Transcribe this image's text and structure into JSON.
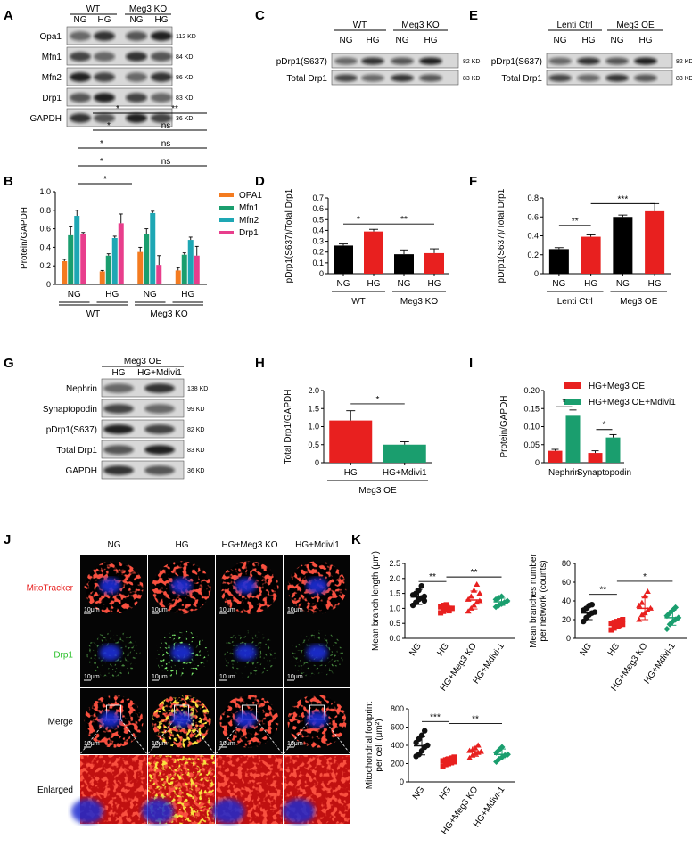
{
  "colors": {
    "ng": "#000000",
    "hg": "#e8201f",
    "green": "#1a9e6e",
    "opa1": "#f47b20",
    "mfn1": "#1a9e6e",
    "mfn2": "#1ea7b4",
    "drp1": "#e83e8c",
    "scatter_ng": "#111111",
    "scatter_hg": "#e8201f",
    "scatter_ko": "#e8201f",
    "scatter_mdivi": "#1a9e6e"
  },
  "panels": {
    "A": {
      "label": "A",
      "groups": [
        "WT",
        "Meg3 KO"
      ],
      "lanes": [
        "NG",
        "HG",
        "NG",
        "HG"
      ],
      "rows": [
        {
          "name": "Opa1",
          "kd": "112 KD"
        },
        {
          "name": "Mfn1",
          "kd": "84 KD"
        },
        {
          "name": "Mfn2",
          "kd": "86 KD"
        },
        {
          "name": "Drp1",
          "kd": "83 KD"
        },
        {
          "name": "GAPDH",
          "kd": "36 KD"
        }
      ]
    },
    "C": {
      "label": "C",
      "groups": [
        "WT",
        "Meg3 KO"
      ],
      "lanes": [
        "NG",
        "HG",
        "NG",
        "HG"
      ],
      "rows": [
        {
          "name": "pDrp1(S637)",
          "kd": "82 KD"
        },
        {
          "name": "Total Drp1",
          "kd": "83 KD"
        }
      ]
    },
    "E": {
      "label": "E",
      "groups": [
        "Lenti Ctrl",
        "Meg3 OE"
      ],
      "lanes": [
        "NG",
        "HG",
        "NG",
        "HG"
      ],
      "rows": [
        {
          "name": "pDrp1(S637)",
          "kd": "82 KD"
        },
        {
          "name": "Total Drp1",
          "kd": "83 KD"
        }
      ]
    },
    "G": {
      "label": "G",
      "group": "Meg3 OE",
      "lanes": [
        "HG",
        "HG+Mdivi1"
      ],
      "rows": [
        {
          "name": "Nephrin",
          "kd": "138 KD"
        },
        {
          "name": "Synaptopodin",
          "kd": "99 KD"
        },
        {
          "name": "pDrp1(S637)",
          "kd": "82 KD"
        },
        {
          "name": "Total Drp1",
          "kd": "83 KD"
        },
        {
          "name": "GAPDH",
          "kd": "36 KD"
        }
      ]
    },
    "B": {
      "label": "B"
    },
    "D": {
      "label": "D"
    },
    "F": {
      "label": "F"
    },
    "H": {
      "label": "H"
    },
    "I": {
      "label": "I"
    },
    "J": {
      "label": "J",
      "columns": [
        "NG",
        "HG",
        "HG+Meg3 KO",
        "HG+Mdivi1"
      ],
      "rows": [
        "MitoTracker",
        "Drp1",
        "Merge",
        "Enlarged"
      ],
      "scalebar": "10μm"
    },
    "K": {
      "label": "K"
    }
  },
  "chart_data": [
    {
      "id": "B",
      "type": "bar",
      "ylabel": "Protein/GAPDH",
      "ylim": [
        0,
        1.0
      ],
      "yticks": [
        "0",
        "0.2",
        "0.4",
        "0.6",
        "0.8",
        "1.0"
      ],
      "categories": [
        "NG",
        "HG",
        "NG",
        "HG"
      ],
      "groups": [
        "WT",
        "Meg3 KO"
      ],
      "series": [
        {
          "name": "OPA1",
          "values": [
            0.25,
            0.14,
            0.35,
            0.15
          ],
          "err": [
            0.02,
            0.01,
            0.05,
            0.03
          ]
        },
        {
          "name": "Mfn1",
          "values": [
            0.53,
            0.31,
            0.54,
            0.32
          ],
          "err": [
            0.09,
            0.02,
            0.06,
            0.02
          ]
        },
        {
          "name": "Mfn2",
          "values": [
            0.74,
            0.5,
            0.77,
            0.48
          ],
          "err": [
            0.06,
            0.02,
            0.02,
            0.03
          ]
        },
        {
          "name": "Drp1",
          "values": [
            0.54,
            0.66,
            0.21,
            0.31
          ],
          "err": [
            0.02,
            0.1,
            0.1,
            0.1
          ]
        }
      ],
      "sig": [
        {
          "label": "*"
        },
        {
          "label": "*"
        },
        {
          "label": "ns"
        },
        {
          "label": "*"
        },
        {
          "label": "ns"
        },
        {
          "label": "*"
        },
        {
          "label": "ns"
        },
        {
          "label": "*"
        },
        {
          "label": "**"
        }
      ]
    },
    {
      "id": "D",
      "type": "bar",
      "ylabel": "pDrp1(S637)/Total Drp1",
      "ylim": [
        0,
        0.7
      ],
      "yticks": [
        "0",
        "0.1",
        "0.2",
        "0.3",
        "0.4",
        "0.5",
        "0.6",
        "0.7"
      ],
      "categories": [
        "NG",
        "HG",
        "NG",
        "HG"
      ],
      "groups": [
        "WT",
        "Meg3 KO"
      ],
      "values": [
        0.26,
        0.39,
        0.18,
        0.19
      ],
      "err": [
        0.015,
        0.02,
        0.04,
        0.04
      ],
      "sig": [
        {
          "label": "*"
        },
        {
          "label": "**"
        }
      ]
    },
    {
      "id": "F",
      "type": "bar",
      "ylabel": "pDrp1(S637)/Total Drp1",
      "ylim": [
        0,
        0.8
      ],
      "yticks": [
        "0",
        "0.2",
        "0.4",
        "0.6",
        "0.8"
      ],
      "categories": [
        "NG",
        "HG",
        "NG",
        "HG"
      ],
      "groups": [
        "Lenti Ctrl",
        "Meg3 OE"
      ],
      "values": [
        0.26,
        0.39,
        0.6,
        0.66
      ],
      "err": [
        0.015,
        0.02,
        0.02,
        0.08
      ],
      "sig": [
        {
          "label": "**"
        },
        {
          "label": "***"
        }
      ]
    },
    {
      "id": "H",
      "type": "bar",
      "ylabel": "Total Drp1/GAPDH",
      "ylim": [
        0,
        2.0
      ],
      "yticks": [
        "0",
        "0.5",
        "1.0",
        "1.5",
        "2.0"
      ],
      "categories": [
        "HG",
        "HG+Mdivi1"
      ],
      "groups": [
        "Meg3 OE"
      ],
      "values": [
        1.17,
        0.5
      ],
      "err": [
        0.27,
        0.08
      ],
      "sig": [
        {
          "label": "*"
        }
      ]
    },
    {
      "id": "I",
      "type": "bar",
      "ylabel": "Protein/GAPDH",
      "ylim": [
        0,
        0.2
      ],
      "yticks": [
        "0",
        "0.05",
        "0.10",
        "0.15",
        "0.20"
      ],
      "categories": [
        "Nephrin",
        "Synaptopodin"
      ],
      "series": [
        {
          "name": "HG+Meg3 OE",
          "values": [
            0.033,
            0.027
          ],
          "err": [
            0.004,
            0.006
          ]
        },
        {
          "name": "HG+Meg3 OE+Mdivi1",
          "values": [
            0.13,
            0.07
          ],
          "err": [
            0.016,
            0.008
          ]
        }
      ],
      "sig": [
        {
          "label": "*"
        },
        {
          "label": "*"
        }
      ]
    },
    {
      "id": "K1",
      "type": "scatter",
      "ylabel": "Mean branch length (μm)",
      "ylim": [
        0,
        2.5
      ],
      "yticks": [
        "0.0",
        "0.5",
        "1.0",
        "1.5",
        "2.0",
        "2.5"
      ],
      "categories": [
        "NG",
        "HG",
        "HG+Meg3 KO",
        "HG+Mdivi-1"
      ],
      "means": [
        1.38,
        1.0,
        1.28,
        1.22
      ],
      "sd": [
        0.25,
        0.1,
        0.3,
        0.12
      ],
      "points": [
        [
          1.1,
          1.2,
          1.3,
          1.35,
          1.4,
          1.45,
          1.5,
          1.6,
          1.75,
          1.25
        ],
        [
          0.85,
          0.9,
          0.95,
          1.0,
          1.0,
          1.05,
          1.1,
          1.12,
          0.92
        ],
        [
          0.9,
          1.0,
          1.1,
          1.2,
          1.25,
          1.3,
          1.4,
          1.6,
          1.8,
          1.5
        ],
        [
          1.05,
          1.1,
          1.15,
          1.2,
          1.25,
          1.3,
          1.35,
          1.4
        ]
      ],
      "sig": [
        {
          "label": "**"
        },
        {
          "label": "**"
        }
      ]
    },
    {
      "id": "K2",
      "type": "scatter",
      "ylabel": "Mean branches number per network (counts)",
      "ylim": [
        0,
        80
      ],
      "yticks": [
        "0",
        "20",
        "40",
        "60",
        "80"
      ],
      "categories": [
        "NG",
        "HG",
        "HG+Meg3 KO",
        "HG+Mdivi-1"
      ],
      "means": [
        27,
        15,
        32,
        22
      ],
      "sd": [
        7,
        4,
        12,
        8
      ],
      "points": [
        [
          18,
          22,
          25,
          27,
          28,
          30,
          32,
          35,
          36
        ],
        [
          9,
          11,
          13,
          14,
          15,
          16,
          17,
          18,
          19,
          20
        ],
        [
          20,
          25,
          27,
          30,
          32,
          35,
          38,
          45,
          50
        ],
        [
          10,
          15,
          18,
          20,
          22,
          24,
          27,
          30,
          33
        ]
      ],
      "sig": [
        {
          "label": "**"
        },
        {
          "label": "*"
        }
      ]
    },
    {
      "id": "K3",
      "type": "scatter",
      "ylabel": "Mitochondrial footprint per cell (μm²)",
      "ylim": [
        0,
        800
      ],
      "yticks": [
        "0",
        "200",
        "400",
        "600",
        "800"
      ],
      "categories": [
        "NG",
        "HG",
        "HG+Meg3 KO",
        "HG+Mdivi-1"
      ],
      "means": [
        395,
        230,
        330,
        300
      ],
      "sd": [
        100,
        40,
        50,
        60
      ],
      "points": [
        [
          280,
          300,
          340,
          380,
          400,
          430,
          470,
          510,
          560
        ],
        [
          170,
          190,
          200,
          210,
          220,
          230,
          240,
          250,
          260,
          270
        ],
        [
          260,
          290,
          310,
          320,
          330,
          340,
          350,
          370,
          400
        ],
        [
          220,
          250,
          270,
          290,
          300,
          320,
          350,
          380
        ]
      ],
      "sig": [
        {
          "label": "***"
        },
        {
          "label": "**"
        }
      ]
    }
  ]
}
